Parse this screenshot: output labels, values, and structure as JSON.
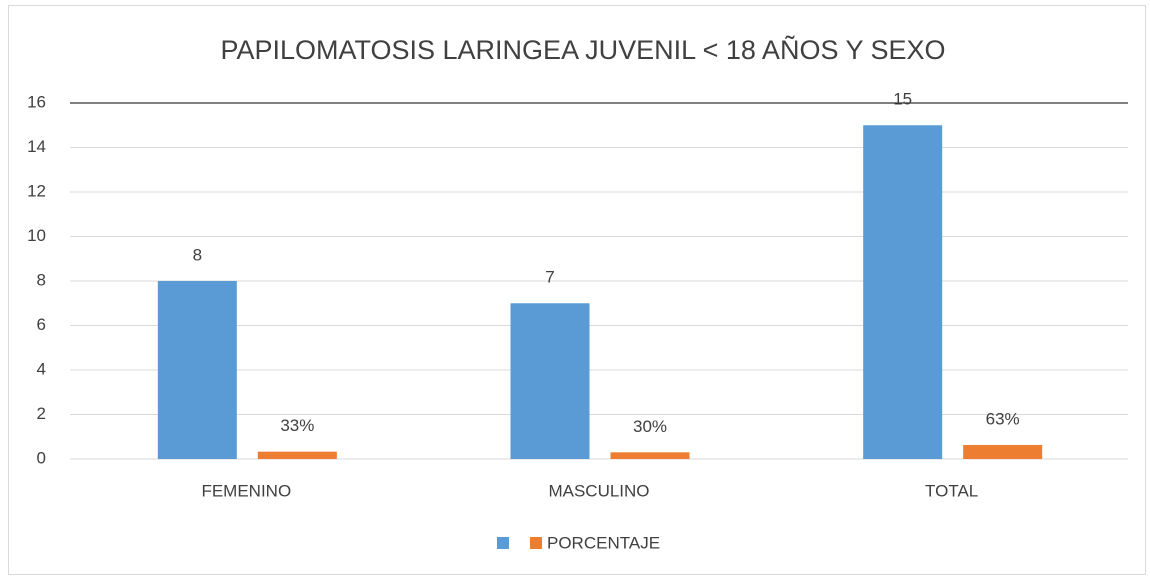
{
  "chart_data": {
    "type": "bar",
    "title": "PAPILOMATOSIS LARINGEA JUVENIL < 18 AÑOS Y SEXO",
    "categories": [
      "FEMENINO",
      "MASCULINO",
      "TOTAL"
    ],
    "series": [
      {
        "color": "#5b9bd5",
        "values": [
          8,
          7,
          15
        ]
      },
      {
        "name": "PORCENTAJE",
        "color": "#ed7d31",
        "values": [
          0.33,
          0.3,
          0.63
        ],
        "value_labels": [
          "33%",
          "30%",
          "63%"
        ]
      }
    ],
    "ylim": [
      0,
      16
    ],
    "yticks": [
      0,
      2,
      4,
      6,
      8,
      10,
      12,
      14,
      16
    ],
    "grid": true,
    "legend": "bottom"
  }
}
